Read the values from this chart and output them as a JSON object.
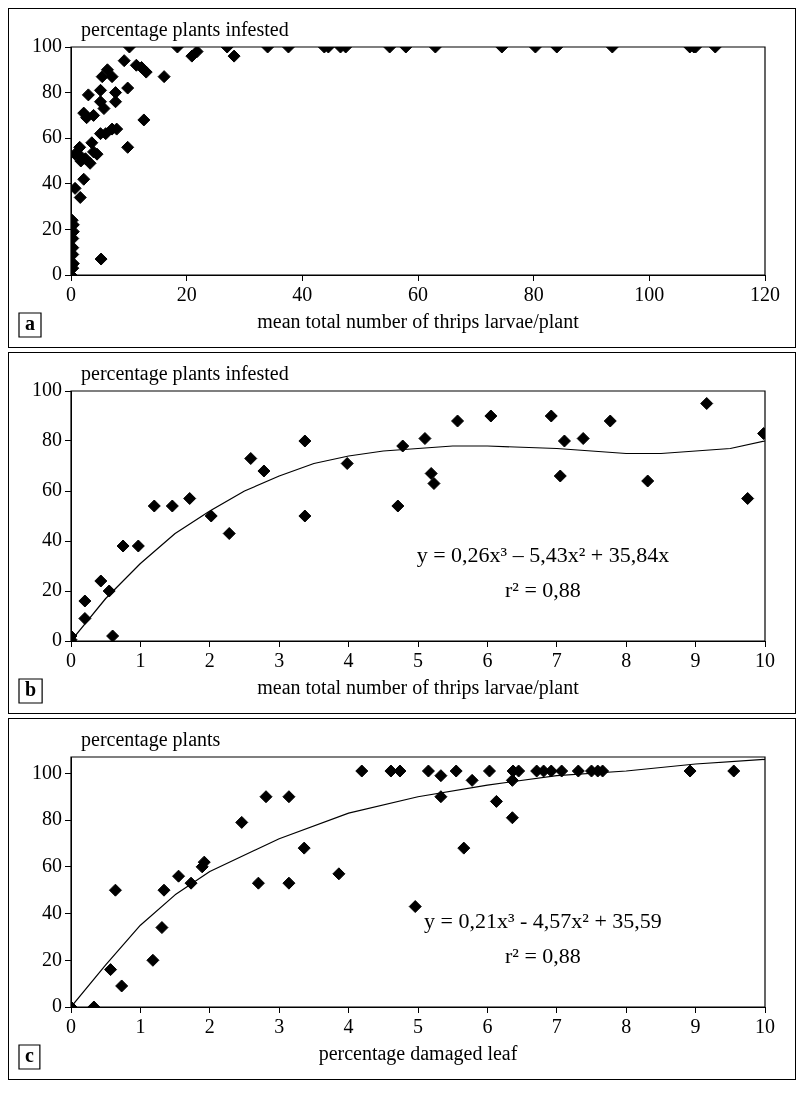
{
  "chart_data": [
    {
      "type": "scatter",
      "ylabel": "percentage plants infested",
      "xlabel": "mean total number of thrips larvae/plant",
      "xlim": [
        0,
        120
      ],
      "xticks": [
        0,
        20,
        40,
        60,
        80,
        100,
        120
      ],
      "ylim": [
        0,
        100
      ],
      "yticks": [
        0,
        20,
        40,
        60,
        80,
        100
      ],
      "grid": false,
      "legend": false,
      "marker": "diamond",
      "annotations": [
        "a"
      ],
      "series": [
        {
          "color": "#000000",
          "x": [
            0,
            0.3,
            0.4,
            0.3,
            0.3,
            0.3,
            0.4,
            0.4,
            0.2,
            0.7,
            1.6,
            2.2,
            0.7,
            1.5,
            1.3,
            1.7,
            2.5,
            3.3,
            3.9,
            4.5,
            3.6,
            5.1,
            6,
            7.1,
            7.9,
            9.8,
            12.6,
            2.2,
            2.7,
            3.9,
            3,
            5.1,
            5.1,
            5.7,
            5.4,
            6.3,
            7.1,
            7.7,
            7.7,
            9.8,
            9.2,
            10.1,
            11.3,
            12.2,
            13,
            16.1,
            5.2,
            18.4,
            20.9,
            21.8,
            27,
            28.2,
            34,
            37.6,
            43.8,
            44.5,
            46.6,
            47.5,
            55.1,
            57.9,
            63,
            74.5,
            80.3,
            84,
            93.6,
            107,
            107.7,
            108,
            111.4
          ],
          "values": [
            0,
            3,
            5,
            9,
            12,
            16,
            19,
            22,
            24,
            38,
            34,
            42,
            53,
            56,
            53,
            50,
            51,
            49,
            54,
            53,
            58,
            62,
            62,
            64,
            64,
            56,
            68,
            71,
            69,
            70,
            79,
            76,
            81,
            73,
            87,
            90,
            87,
            80,
            76,
            82,
            94,
            100,
            92,
            91,
            89,
            87,
            7,
            100,
            96,
            98,
            100,
            96,
            100,
            100,
            100,
            100,
            100,
            100,
            100,
            100,
            100,
            100,
            100,
            100,
            100,
            100,
            100,
            100,
            100
          ]
        }
      ]
    },
    {
      "type": "scatter",
      "ylabel": "percentage plants infested",
      "xlabel": "mean total number of thrips larvae/plant",
      "xlim": [
        0,
        10
      ],
      "xticks": [
        0,
        1,
        2,
        3,
        4,
        5,
        6,
        7,
        8,
        9,
        10
      ],
      "ylim": [
        0,
        100
      ],
      "yticks": [
        0,
        20,
        40,
        60,
        80,
        100
      ],
      "grid": false,
      "legend": false,
      "marker": "diamond",
      "annotations": [
        "b",
        "y = 0,26x³ – 5,43x² + 35,84x",
        "r² = 0,88"
      ],
      "series": [
        {
          "color": "#000000",
          "x": [
            0,
            0,
            0.2,
            0.2,
            0.43,
            0.55,
            0.6,
            0.75,
            0.97,
            1.2,
            1.46,
            1.71,
            2.02,
            2.28,
            2.59,
            2.78,
            3.37,
            3.37,
            3.98,
            4.71,
            4.78,
            5.1,
            5.19,
            5.23,
            5.57,
            6.05,
            6.92,
            7.05,
            7.11,
            7.38,
            7.77,
            8.31,
            9.16,
            9.75,
            9.98
          ],
          "values": [
            0.5,
            2,
            9,
            16,
            24,
            20,
            2,
            38,
            38,
            54,
            54,
            57,
            50,
            43,
            73,
            68,
            80,
            50,
            71,
            54,
            78,
            81,
            67,
            63,
            88,
            90,
            90,
            66,
            80,
            81,
            88,
            64,
            95,
            57,
            83
          ]
        },
        {
          "type": "line",
          "color": "#000000",
          "marker": "none",
          "x": [
            0,
            0.5,
            1,
            1.5,
            2,
            2.5,
            3,
            3.5,
            4,
            4.5,
            5,
            5.5,
            6,
            7,
            8,
            8.5,
            9,
            9.5,
            10
          ],
          "values": [
            0,
            17,
            31,
            43,
            52,
            60,
            66,
            71,
            74,
            76,
            77,
            78,
            78,
            77,
            75,
            75,
            76,
            77,
            80
          ]
        }
      ]
    },
    {
      "type": "scatter",
      "ylabel": "percentage plants",
      "xlabel": "percentage damaged leaf",
      "xlim": [
        0,
        10
      ],
      "xticks": [
        0,
        1,
        2,
        3,
        4,
        5,
        6,
        7,
        8,
        9,
        10
      ],
      "ylim": [
        0,
        107
      ],
      "yticks": [
        0,
        20,
        40,
        60,
        80,
        100
      ],
      "grid": false,
      "legend": false,
      "marker": "diamond",
      "annotations": [
        "c",
        "y = 0,21x³ - 4,57x² + 35,59",
        "r² = 0,88"
      ],
      "series": [
        {
          "color": "#000000",
          "x": [
            0,
            0.33,
            0.57,
            0.64,
            0.73,
            1.18,
            1.31,
            1.34,
            1.55,
            1.73,
            1.89,
            1.92,
            2.46,
            2.7,
            2.81,
            3.14,
            3.14,
            3.36,
            3.86,
            4.19,
            4.61,
            4.74,
            4.96,
            5.15,
            5.33,
            5.33,
            5.55,
            5.66,
            5.78,
            6.03,
            6.13,
            6.36,
            6.36,
            6.37,
            6.45,
            6.71,
            6.81,
            6.92,
            7.07,
            7.31,
            7.5,
            7.59,
            7.66,
            8.92,
            9.55
          ],
          "values": [
            0,
            0,
            16,
            50,
            9,
            20,
            34,
            50,
            56,
            53,
            60,
            62,
            79,
            53,
            90,
            53,
            90,
            68,
            57,
            101,
            101,
            101,
            43,
            101,
            99,
            90,
            101,
            68,
            97,
            101,
            88,
            81,
            97,
            101,
            101,
            101,
            101,
            101,
            101,
            101,
            101,
            101,
            101,
            101,
            101
          ]
        },
        {
          "type": "line",
          "color": "#000000",
          "marker": "none",
          "x": [
            0,
            0.5,
            1,
            1.5,
            2,
            3,
            4,
            5,
            6,
            7,
            8,
            9,
            10
          ],
          "values": [
            0,
            18,
            35,
            48,
            58,
            72,
            83,
            90,
            95,
            99,
            101,
            104,
            106
          ]
        }
      ]
    }
  ]
}
